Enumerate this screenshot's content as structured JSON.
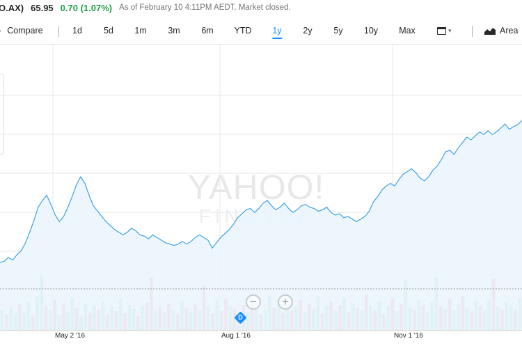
{
  "quote": {
    "ticker": "O.AX)",
    "price": "65.95",
    "change": "0.70 (1.07%)",
    "as_of": "As of February 10 4:11PM AEDT. Market closed."
  },
  "colors": {
    "positive": "#21a04a",
    "accent": "#188fff",
    "line": "#3ea2e6",
    "fill": "#eaf4fd",
    "volume_up": "#a6e2c0",
    "volume_down": "#f4a9b8"
  },
  "toolbar": {
    "compare_label": "Compare",
    "compare_icon": "plus-icon",
    "ranges": [
      "1d",
      "5d",
      "1m",
      "3m",
      "6m",
      "YTD",
      "1y",
      "2y",
      "5y",
      "10y",
      "Max"
    ],
    "active_range": "1y",
    "date_picker_icon": "calendar-icon",
    "chart_type_label": "Area",
    "chart_type_icon": "area-chart-icon"
  },
  "chart_data": {
    "type": "area",
    "xlabels": [
      "May 2 '16",
      "Aug 1 '16",
      "Nov 1 '16"
    ],
    "watermark": [
      "YAHOO!",
      "FINANCE"
    ],
    "event_marker": "D",
    "zoom_out_icon": "minus-icon",
    "zoom_in_icon": "plus-icon",
    "grid": true,
    "series": [
      {
        "values": [
          44.4,
          44.6,
          45.2,
          44.8,
          45.6,
          46.2,
          47.4,
          49.0,
          50.8,
          52.8,
          53.8,
          54.6,
          53.2,
          51.6,
          50.6,
          51.4,
          52.8,
          54.4,
          56.2,
          57.4,
          56.4,
          54.6,
          53.0,
          52.2,
          51.4,
          50.6,
          50.0,
          49.4,
          49.0,
          48.6,
          49.0,
          49.6,
          49.2,
          48.6,
          48.4,
          48.0,
          48.6,
          48.2,
          47.8,
          47.4,
          47.2,
          47.0,
          47.2,
          47.6,
          47.2,
          47.6,
          48.2,
          48.6,
          48.2,
          47.8,
          46.6,
          47.4,
          48.2,
          48.8,
          49.4,
          50.2,
          51.2,
          51.8,
          52.4,
          52.6,
          52.0,
          52.6,
          53.4,
          53.8,
          53.0,
          52.4,
          52.8,
          53.4,
          52.6,
          52.0,
          52.4,
          53.0,
          53.2,
          52.8,
          52.6,
          52.2,
          52.4,
          52.8,
          52.0,
          51.6,
          51.8,
          51.2,
          51.4,
          51.0,
          50.6,
          51.0,
          51.4,
          52.2,
          53.6,
          54.4,
          55.4,
          56.0,
          56.4,
          56.0,
          57.0,
          57.8,
          58.2,
          58.6,
          58.0,
          57.2,
          56.8,
          57.4,
          58.4,
          59.0,
          60.0,
          61.2,
          61.4,
          60.8,
          61.8,
          62.6,
          63.4,
          63.0,
          63.6,
          64.2,
          63.8,
          64.4,
          63.8,
          64.2,
          64.8,
          65.4,
          64.6,
          65.0,
          65.3,
          65.95
        ]
      }
    ],
    "volume": [
      {
        "v": 0.36,
        "up": true
      },
      {
        "v": 0.28,
        "up": false
      },
      {
        "v": 0.42,
        "up": true
      },
      {
        "v": 0.31,
        "up": true
      },
      {
        "v": 0.48,
        "up": false
      },
      {
        "v": 0.33,
        "up": true
      },
      {
        "v": 0.52,
        "up": true
      },
      {
        "v": 0.27,
        "up": false
      },
      {
        "v": 0.61,
        "up": true
      },
      {
        "v": 0.98,
        "up": true
      },
      {
        "v": 0.44,
        "up": false
      },
      {
        "v": 0.37,
        "up": true
      },
      {
        "v": 0.55,
        "up": false
      },
      {
        "v": 0.29,
        "up": true
      },
      {
        "v": 0.47,
        "up": false
      },
      {
        "v": 0.34,
        "up": true
      },
      {
        "v": 0.58,
        "up": true
      },
      {
        "v": 0.41,
        "up": false
      },
      {
        "v": 0.26,
        "up": true
      },
      {
        "v": 0.49,
        "up": true
      },
      {
        "v": 0.32,
        "up": false
      },
      {
        "v": 0.45,
        "up": true
      },
      {
        "v": 0.38,
        "up": false
      },
      {
        "v": 0.52,
        "up": true
      },
      {
        "v": 0.29,
        "up": false
      },
      {
        "v": 0.43,
        "up": true
      },
      {
        "v": 0.35,
        "up": false
      },
      {
        "v": 0.57,
        "up": true
      },
      {
        "v": 0.31,
        "up": false
      },
      {
        "v": 0.46,
        "up": true
      },
      {
        "v": 0.39,
        "up": true
      },
      {
        "v": 0.27,
        "up": false
      },
      {
        "v": 0.44,
        "up": true
      },
      {
        "v": 0.51,
        "up": false
      },
      {
        "v": 0.96,
        "up": false
      },
      {
        "v": 0.36,
        "up": true
      },
      {
        "v": 0.42,
        "up": false
      },
      {
        "v": 0.33,
        "up": true
      },
      {
        "v": 0.48,
        "up": false
      },
      {
        "v": 0.37,
        "up": true
      },
      {
        "v": 0.29,
        "up": false
      },
      {
        "v": 0.53,
        "up": true
      },
      {
        "v": 0.41,
        "up": false
      },
      {
        "v": 0.34,
        "up": true
      },
      {
        "v": 0.47,
        "up": false
      },
      {
        "v": 0.38,
        "up": true
      },
      {
        "v": 0.82,
        "up": false
      },
      {
        "v": 0.43,
        "up": true
      },
      {
        "v": 0.31,
        "up": false
      },
      {
        "v": 0.56,
        "up": true
      },
      {
        "v": 0.36,
        "up": false
      },
      {
        "v": 0.58,
        "up": false
      },
      {
        "v": 0.44,
        "up": true
      },
      {
        "v": 0.39,
        "up": false
      },
      {
        "v": 0.27,
        "up": true
      },
      {
        "v": 0.46,
        "up": false
      },
      {
        "v": 0.33,
        "up": true
      },
      {
        "v": 0.51,
        "up": false
      },
      {
        "v": 0.42,
        "up": true
      },
      {
        "v": 0.29,
        "up": false
      },
      {
        "v": 0.37,
        "up": true
      },
      {
        "v": 0.63,
        "up": true
      },
      {
        "v": 0.41,
        "up": false
      },
      {
        "v": 0.54,
        "up": true
      },
      {
        "v": 0.32,
        "up": false
      },
      {
        "v": 0.47,
        "up": true
      },
      {
        "v": 0.36,
        "up": false
      },
      {
        "v": 0.43,
        "up": true
      },
      {
        "v": 0.55,
        "up": false
      },
      {
        "v": 0.34,
        "up": true
      },
      {
        "v": 0.48,
        "up": false
      },
      {
        "v": 0.39,
        "up": true
      },
      {
        "v": 0.62,
        "up": true
      },
      {
        "v": 0.31,
        "up": false
      },
      {
        "v": 0.45,
        "up": true
      },
      {
        "v": 0.52,
        "up": false
      },
      {
        "v": 0.37,
        "up": true
      },
      {
        "v": 0.44,
        "up": false
      },
      {
        "v": 0.58,
        "up": true
      },
      {
        "v": 0.33,
        "up": false
      },
      {
        "v": 0.49,
        "up": true
      },
      {
        "v": 0.41,
        "up": false
      },
      {
        "v": 0.36,
        "up": true
      },
      {
        "v": 0.64,
        "up": false
      },
      {
        "v": 0.46,
        "up": true
      },
      {
        "v": 0.38,
        "up": false
      },
      {
        "v": 0.53,
        "up": true
      },
      {
        "v": 0.29,
        "up": false
      },
      {
        "v": 0.44,
        "up": true
      },
      {
        "v": 0.57,
        "up": false
      },
      {
        "v": 0.35,
        "up": true
      },
      {
        "v": 0.48,
        "up": false
      },
      {
        "v": 0.92,
        "up": true
      },
      {
        "v": 0.42,
        "up": true
      },
      {
        "v": 0.37,
        "up": false
      },
      {
        "v": 0.55,
        "up": true
      },
      {
        "v": 0.46,
        "up": false
      },
      {
        "v": 0.33,
        "up": true
      },
      {
        "v": 0.51,
        "up": true
      },
      {
        "v": 0.96,
        "up": true
      },
      {
        "v": 0.44,
        "up": false
      },
      {
        "v": 0.39,
        "up": true
      },
      {
        "v": 0.58,
        "up": false
      },
      {
        "v": 0.36,
        "up": true
      },
      {
        "v": 0.47,
        "up": true
      },
      {
        "v": 0.62,
        "up": false
      },
      {
        "v": 0.41,
        "up": true
      },
      {
        "v": 0.34,
        "up": false
      },
      {
        "v": 0.53,
        "up": true
      },
      {
        "v": 0.45,
        "up": false
      },
      {
        "v": 0.38,
        "up": true
      },
      {
        "v": 0.56,
        "up": true
      },
      {
        "v": 0.94,
        "up": false
      },
      {
        "v": 0.43,
        "up": true
      },
      {
        "v": 0.37,
        "up": false
      },
      {
        "v": 0.51,
        "up": true
      },
      {
        "v": 0.46,
        "up": true
      },
      {
        "v": 0.39,
        "up": false
      },
      {
        "v": 0.58,
        "up": true
      }
    ]
  }
}
